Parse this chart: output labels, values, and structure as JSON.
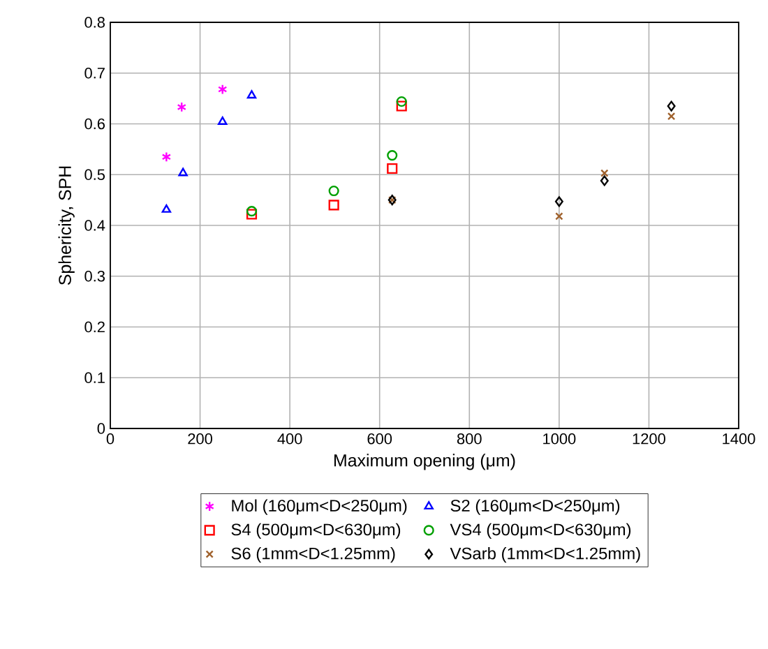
{
  "chart_data": {
    "type": "scatter",
    "xlabel": "Maximum opening (μm)",
    "ylabel": "Sphericity, SPH",
    "xlim": [
      0,
      1400
    ],
    "xticks": [
      0,
      200,
      400,
      600,
      800,
      1000,
      1200,
      1400
    ],
    "ylim": [
      0,
      0.8
    ],
    "yticks": [
      0,
      0.1,
      0.2,
      0.3,
      0.4,
      0.5,
      0.6,
      0.7,
      0.8
    ],
    "grid": true,
    "legend": "bottom",
    "series": [
      {
        "name": "Mol (160μm<D<250μm)",
        "color": "#ff00ff",
        "marker": "cross",
        "x": [
          125,
          159,
          250
        ],
        "values": [
          0.535,
          0.633,
          0.668
        ]
      },
      {
        "name": "S2 (160μm<D<250μm)",
        "color": "#0000ff",
        "marker": "triangle",
        "x": [
          125,
          162,
          250,
          315
        ],
        "values": [
          0.431,
          0.503,
          0.604,
          0.656
        ]
      },
      {
        "name": "S4 (500μm<D<630μm)",
        "color": "#ff0000",
        "marker": "square",
        "x": [
          315,
          498,
          628,
          649
        ],
        "values": [
          0.422,
          0.44,
          0.512,
          0.635
        ]
      },
      {
        "name": "VS4 (500μm<D<630μm)",
        "color": "#00a000",
        "marker": "circle",
        "x": [
          315,
          498,
          628,
          649
        ],
        "values": [
          0.428,
          0.468,
          0.538,
          0.644
        ]
      },
      {
        "name": "S6 (1mm<D<1.25mm)",
        "color": "#a0622d",
        "marker": "cross",
        "x": [
          628,
          1000,
          1101,
          1250
        ],
        "values": [
          0.45,
          0.418,
          0.503,
          0.615
        ]
      },
      {
        "name": "VSarb (1mm<D<1.25mm)",
        "color": "#000000",
        "marker": "diamond",
        "x": [
          628,
          1000,
          1101,
          1250
        ],
        "values": [
          0.45,
          0.447,
          0.488,
          0.635
        ]
      }
    ]
  }
}
